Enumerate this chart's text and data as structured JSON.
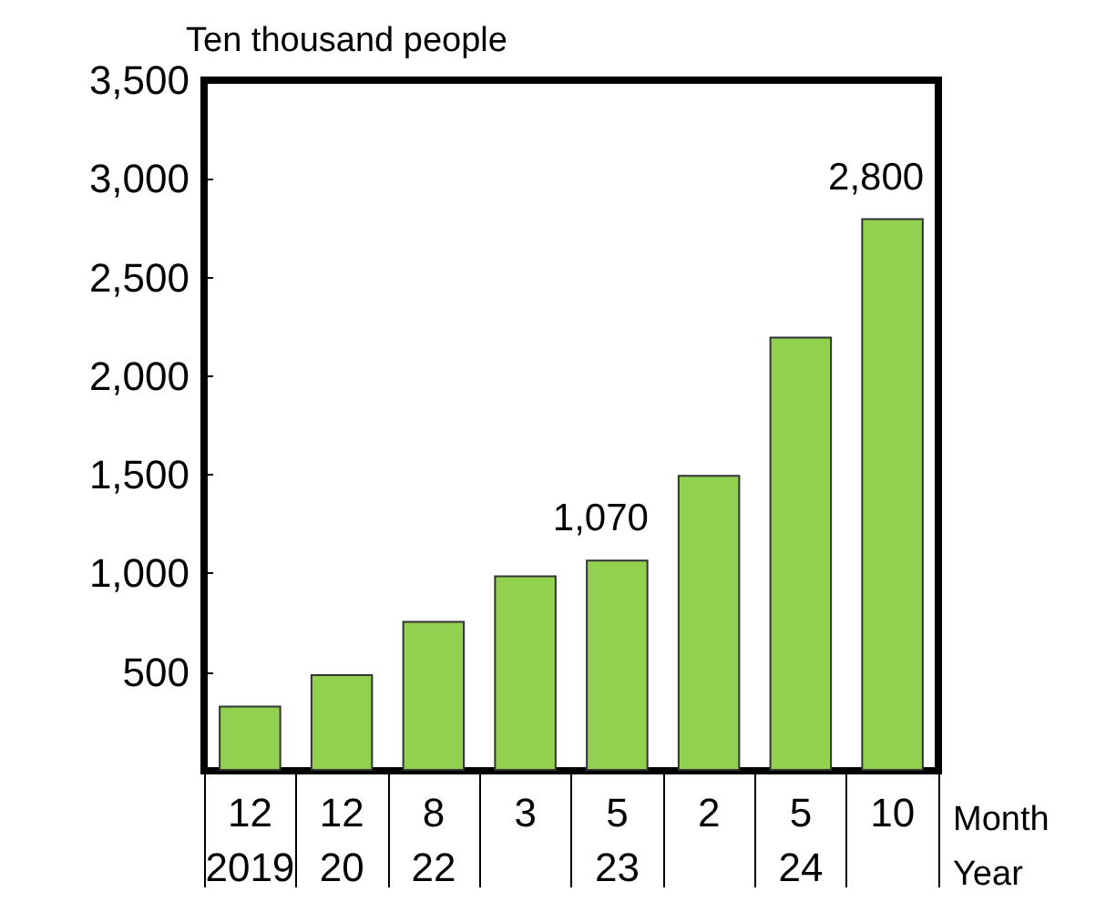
{
  "chart_data": {
    "type": "bar",
    "ylabel": "Ten thousand people",
    "xlabel": "Month\nYear",
    "categories": [
      "12\n2019",
      "12\n20",
      "8\n22",
      "3",
      "5\n23",
      "2",
      "5\n24",
      "10"
    ],
    "values": [
      330,
      490,
      760,
      990,
      1070,
      1500,
      2200,
      2800
    ],
    "value_labels": [
      null,
      null,
      null,
      null,
      "1,070",
      null,
      null,
      "2,800"
    ],
    "color": "#92d050",
    "ylim": [
      0,
      3500
    ],
    "yticks": [
      {
        "value": 0,
        "label": null
      },
      {
        "value": 500,
        "label": "500"
      },
      {
        "value": 1000,
        "label": "1,000"
      },
      {
        "value": 1500,
        "label": "1,500"
      },
      {
        "value": 2000,
        "label": "2,000"
      },
      {
        "value": 2500,
        "label": "2,500"
      },
      {
        "value": 3000,
        "label": "3,000"
      },
      {
        "value": 3500,
        "label": "3,500"
      }
    ],
    "grid": false
  }
}
